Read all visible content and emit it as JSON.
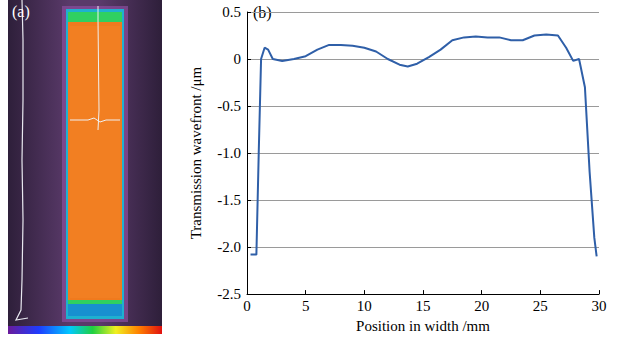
{
  "image_panel": {
    "label": "(a)"
  },
  "chart_data": {
    "type": "line",
    "panel_label": "(b)",
    "x_label": "Position in width /mm",
    "y_label": "Transmission wavefront /μm",
    "x": [
      0.3,
      0.8,
      1.0,
      1.2,
      1.5,
      1.8,
      2.2,
      3,
      4,
      5,
      6,
      7,
      8,
      9,
      10,
      11,
      12,
      13,
      13.7,
      14.5,
      15.5,
      16.5,
      17.5,
      18.5,
      19.5,
      20.5,
      21.5,
      22.5,
      23.5,
      24.5,
      25.5,
      26.5,
      27.2,
      27.8,
      28.3,
      28.8,
      29.2,
      29.6,
      29.8
    ],
    "values": [
      -2.08,
      -2.08,
      -1.0,
      0.0,
      0.12,
      0.1,
      0.0,
      -0.02,
      0.0,
      0.03,
      0.1,
      0.15,
      0.15,
      0.14,
      0.12,
      0.08,
      0.0,
      -0.06,
      -0.08,
      -0.05,
      0.02,
      0.1,
      0.2,
      0.23,
      0.24,
      0.23,
      0.23,
      0.2,
      0.2,
      0.25,
      0.26,
      0.25,
      0.12,
      -0.02,
      0.0,
      -0.3,
      -1.2,
      -1.9,
      -2.1
    ],
    "color": "#2f5fa8",
    "xlim": [
      0,
      30
    ],
    "xticks": [
      0,
      5,
      10,
      15,
      20,
      25,
      30
    ],
    "ylim": [
      -2.5,
      0.5
    ],
    "yticks": [
      0.5,
      0,
      -0.5,
      {
        "value": -1,
        "label": "-1.0"
      },
      -1.5,
      {
        "value": -2,
        "label": "-2.0"
      },
      -2.5
    ],
    "grid": true
  }
}
